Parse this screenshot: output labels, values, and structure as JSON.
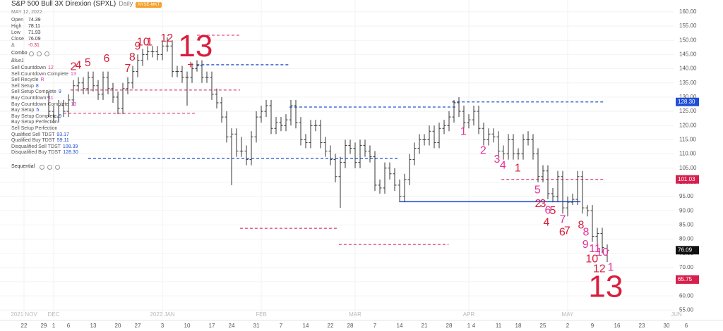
{
  "chart_data": {
    "type": "ohlc",
    "title": "S&P 500 Bull 3X Direxion (SPXL)",
    "interval": "Daily",
    "exchange": "NYSE-MKT",
    "date": "MAY 12, 2022",
    "ohlc_labels": [
      "Open",
      "High",
      "Low",
      "Close"
    ],
    "change_label": "Δ",
    "change": -0.31,
    "indicator": "Combo",
    "indicator_style": "Blue1",
    "indicator_rows": [
      {
        "label": "Sell Countdown",
        "value": "12",
        "color": "#e0476f"
      },
      {
        "label": "Sell Countdown Complete",
        "value": "13",
        "color": "#d43bbd"
      },
      {
        "label": "Sell Recycle",
        "value": "R",
        "color": "#d43bbd"
      },
      {
        "label": "Sell Setup",
        "value": "8",
        "color": "#1f4fd6"
      },
      {
        "label": "Sell Setup Complete",
        "value": "9",
        "color": "#1f4fd6"
      },
      {
        "label": "Buy Countdown",
        "value": "11",
        "color": "#d43bbd"
      },
      {
        "label": "Buy Countdown Complete",
        "value": "13",
        "color": "#d43bbd"
      },
      {
        "label": "Buy Setup",
        "value": "5",
        "color": "#1f4fd6"
      },
      {
        "label": "Buy Setup Complete",
        "value": "9",
        "color": "#1f4fd6"
      },
      {
        "label": "Buy Setup Perfection"
      },
      {
        "label": "Sell Setup Perfection"
      },
      {
        "label": "Qualified Sell TDST",
        "value": "93.17",
        "color": "#1f4fd6"
      },
      {
        "label": "Qualified Buy TDST",
        "value": "59.11",
        "color": "#1f4fd6"
      },
      {
        "label": "Disqualified Sell TDST",
        "value": "108.39",
        "color": "#1f4fd6"
      },
      {
        "label": "Disqualified Buy TDST",
        "value": "128.30",
        "color": "#1f4fd6"
      }
    ],
    "indicator2": "Sequential",
    "categories": [
      "22",
      null,
      null,
      null,
      "29",
      null,
      "1",
      null,
      null,
      "6",
      null,
      null,
      null,
      null,
      "13",
      null,
      null,
      null,
      null,
      "20",
      null,
      null,
      null,
      "27",
      null,
      null,
      null,
      null,
      "3",
      null,
      null,
      null,
      null,
      "10",
      null,
      null,
      null,
      null,
      "17",
      null,
      null,
      null,
      "24",
      null,
      null,
      null,
      null,
      "31",
      null,
      null,
      null,
      null,
      "7",
      null,
      null,
      null,
      null,
      "14",
      null,
      null,
      null,
      null,
      "22",
      null,
      null,
      null,
      "28",
      null,
      null,
      null,
      null,
      "7",
      null,
      null,
      null,
      null,
      "14",
      null,
      null,
      null,
      null,
      "21",
      null,
      null,
      null,
      null,
      "28",
      null,
      null,
      null,
      "1",
      "4",
      null,
      null,
      null,
      null,
      "11",
      null,
      null,
      null,
      "18",
      null,
      null,
      null,
      null,
      "25",
      null,
      null,
      null,
      null,
      "2",
      null,
      null,
      null,
      null,
      "9",
      null,
      null,
      null,
      null,
      "16",
      null,
      null,
      null,
      null,
      "23",
      null,
      null,
      null,
      null,
      "30",
      null,
      null,
      null,
      "6"
    ],
    "open": [
      null,
      null,
      null,
      null,
      null,
      130,
      125,
      123,
      127,
      125,
      129,
      134,
      135,
      133,
      137,
      134,
      131,
      137,
      133,
      130,
      126,
      133,
      135,
      139,
      143,
      145,
      146,
      146,
      145,
      148,
      148,
      139,
      139,
      137,
      137,
      140,
      141,
      137,
      137,
      131,
      128,
      123,
      116,
      117,
      111,
      111,
      108,
      116,
      123,
      125,
      127,
      119,
      121,
      120,
      122,
      127,
      121,
      115,
      114,
      120,
      120,
      114,
      111,
      108,
      102,
      107,
      113,
      112,
      107,
      113,
      111,
      109,
      99,
      98,
      105,
      103,
      99,
      95,
      101,
      108,
      112,
      115,
      115,
      118,
      114,
      119,
      120,
      123,
      128,
      125,
      121,
      122,
      125,
      119,
      115,
      117,
      116,
      111,
      110,
      115,
      110,
      110,
      115,
      115,
      110,
      102,
      104,
      96,
      95,
      102,
      91,
      93,
      94,
      102,
      91,
      90,
      81,
      82,
      74.39,
      null,
      null,
      null,
      null,
      null,
      null,
      null,
      null,
      null,
      null,
      null,
      null,
      null,
      null,
      null,
      null
    ],
    "high": [
      null,
      null,
      null,
      null,
      null,
      132,
      127,
      129,
      129,
      131,
      136,
      137,
      137,
      139,
      139,
      136,
      139,
      139,
      135,
      132,
      135,
      137,
      141,
      145,
      147,
      148,
      148,
      148,
      150,
      151,
      150,
      141,
      141,
      139,
      142,
      143,
      143,
      139,
      139,
      133,
      130,
      125,
      119,
      119,
      116,
      113,
      118,
      125,
      127,
      129,
      129,
      123,
      123,
      124,
      129,
      129,
      123,
      117,
      122,
      122,
      122,
      116,
      113,
      110,
      109,
      115,
      115,
      114,
      115,
      115,
      113,
      111,
      101,
      107,
      107,
      105,
      101,
      103,
      110,
      114,
      117,
      117,
      120,
      120,
      121,
      122,
      125,
      129,
      130,
      127,
      124,
      127,
      127,
      121,
      119,
      119,
      118,
      113,
      117,
      117,
      112,
      117,
      118,
      117,
      112,
      106,
      106,
      98,
      104,
      104,
      95,
      96,
      104,
      104,
      92,
      92,
      84,
      84,
      78.11,
      null,
      null,
      null,
      null,
      null,
      null,
      null,
      null,
      null,
      null,
      null,
      null,
      null,
      null,
      null,
      null
    ],
    "low": [
      null,
      null,
      null,
      null,
      null,
      123,
      121,
      121,
      123,
      123,
      127,
      132,
      131,
      131,
      132,
      129,
      129,
      131,
      128,
      124,
      124,
      131,
      133,
      137,
      141,
      143,
      144,
      143,
      143,
      146,
      137,
      137,
      135,
      127,
      135,
      139,
      135,
      135,
      129,
      126,
      121,
      114,
      99,
      109,
      109,
      106,
      106,
      114,
      121,
      123,
      117,
      117,
      118,
      118,
      120,
      119,
      113,
      112,
      112,
      118,
      112,
      109,
      106,
      100,
      91,
      105,
      110,
      105,
      105,
      109,
      107,
      97,
      96,
      96,
      101,
      97,
      93,
      93,
      99,
      106,
      110,
      113,
      113,
      112,
      112,
      117,
      118,
      121,
      123,
      119,
      119,
      120,
      117,
      113,
      113,
      114,
      109,
      108,
      108,
      108,
      108,
      108,
      113,
      108,
      100,
      100,
      94,
      93,
      93,
      89,
      88,
      92,
      92,
      89,
      88,
      79,
      78,
      75,
      71.93,
      null,
      null,
      null,
      null,
      null,
      null,
      null,
      null,
      null,
      null,
      null,
      null,
      null,
      null,
      null,
      null
    ],
    "close": [
      null,
      null,
      null,
      null,
      null,
      125,
      123,
      127,
      125,
      129,
      134,
      135,
      133,
      137,
      134,
      131,
      137,
      133,
      130,
      126,
      133,
      135,
      139,
      143,
      145,
      146,
      146,
      145,
      148,
      148,
      139,
      139,
      137,
      137,
      140,
      141,
      137,
      137,
      131,
      128,
      123,
      116,
      117,
      111,
      111,
      108,
      116,
      123,
      125,
      127,
      119,
      121,
      120,
      122,
      127,
      121,
      115,
      114,
      120,
      120,
      114,
      111,
      108,
      102,
      107,
      113,
      112,
      107,
      113,
      111,
      109,
      99,
      98,
      105,
      103,
      99,
      95,
      101,
      108,
      112,
      115,
      115,
      118,
      114,
      119,
      120,
      123,
      128,
      125,
      121,
      122,
      125,
      119,
      115,
      117,
      116,
      111,
      110,
      115,
      110,
      110,
      115,
      115,
      110,
      102,
      104,
      96,
      95,
      102,
      91,
      93,
      94,
      102,
      91,
      90,
      81,
      82,
      77,
      76.09,
      null,
      null,
      null,
      null,
      null,
      null,
      null,
      null,
      null,
      null,
      null,
      null,
      null,
      null,
      null,
      null
    ],
    "bar_color": "#333333",
    "month_labels": [
      {
        "value": 0,
        "label": "2021 NOV"
      },
      {
        "value": 6,
        "label": "DEC"
      },
      {
        "value": 28,
        "label": "2022 JAN"
      },
      {
        "value": 48,
        "label": "FEB"
      },
      {
        "value": 67,
        "label": "MAR"
      },
      {
        "value": 90,
        "label": "APR"
      },
      {
        "value": 110,
        "label": "MAY"
      },
      {
        "value": 132,
        "label": "JUN"
      }
    ],
    "ylim": [
      52.1,
      164.2
    ],
    "yticks": [
      {
        "value": 55,
        "label": "55.00"
      },
      {
        "value": 60,
        "label": "60.00"
      },
      {
        "value": 65,
        "label": "65.00"
      },
      {
        "value": 70,
        "label": "70.00"
      },
      {
        "value": 75,
        "label": "75.00"
      },
      {
        "value": 80,
        "label": "80.00"
      },
      {
        "value": 85,
        "label": "85.00"
      },
      {
        "value": 90,
        "label": "90.00"
      },
      {
        "value": 95,
        "label": "95.00"
      },
      {
        "value": 100,
        "label": "100.00"
      },
      {
        "value": 105,
        "label": "105.00"
      },
      {
        "value": 110,
        "label": "110.00"
      },
      {
        "value": 115,
        "label": "115.00"
      },
      {
        "value": 120,
        "label": "120.00"
      },
      {
        "value": 125,
        "label": "125.00"
      },
      {
        "value": 130,
        "label": "130.00"
      },
      {
        "value": 135,
        "label": "135.00"
      },
      {
        "value": 140,
        "label": "140.00"
      },
      {
        "value": 145,
        "label": "145.00"
      },
      {
        "value": 150,
        "label": "150.00"
      },
      {
        "value": 155,
        "label": "155.00"
      },
      {
        "value": 160,
        "label": "160.00"
      }
    ],
    "grid": true,
    "levels": [
      {
        "value": 108.39,
        "x": [
          13,
          76
        ],
        "style": "dashed",
        "color": "#1f4fd6"
      },
      {
        "value": 141.4,
        "x": [
          34.9,
          53.7
        ],
        "style": "dashed",
        "color": "#1f4fd6"
      },
      {
        "value": 126.5,
        "x": [
          53.7,
          87.3
        ],
        "style": "dashed",
        "color": "#1f4fd6"
      },
      {
        "value": 128.3,
        "x": [
          86.6,
          117.4
        ],
        "style": "dashed",
        "color": "#1f4fd6"
      },
      {
        "value": 93.17,
        "x": [
          76,
          112.6
        ],
        "style": "solid",
        "color": "#1f4fd6"
      },
      {
        "value": 151.8,
        "x": [
          35,
          43.7
        ],
        "style": "dashed",
        "color": "#e0508f"
      },
      {
        "value": 132.5,
        "x": [
          9.4,
          43.7
        ],
        "style": "dashed",
        "color": "#e0508f"
      },
      {
        "value": 124.3,
        "x": [
          8,
          35
        ],
        "style": "dashed",
        "color": "#e0508f"
      },
      {
        "value": 101.03,
        "x": [
          96.6,
          117.4
        ],
        "style": "dashed",
        "color": "#e0508f"
      },
      {
        "value": 83.8,
        "x": [
          43.7,
          63.4
        ],
        "style": "dashed",
        "color": "#e0508f"
      },
      {
        "value": 78.1,
        "x": [
          63.7,
          85.9
        ],
        "style": "dashed",
        "color": "#e0508f"
      }
    ],
    "price_labels": [
      {
        "value": 128.3,
        "label": "128.30",
        "color": "#1f4fd6"
      },
      {
        "value": 101.03,
        "color": "#d6204d"
      },
      {
        "value": 76.09,
        "color": "#111111"
      },
      {
        "value": 65.75,
        "color": "#d6204d"
      }
    ],
    "annotations": [
      {
        "text": "2",
        "x": 10,
        "y": 140.6,
        "color": "#d81e3c"
      },
      {
        "text": "4",
        "x": 11,
        "y": 141.1,
        "color": "#d81e3c"
      },
      {
        "text": "5",
        "x": 12.9,
        "y": 141.9,
        "color": "#d81e3c"
      },
      {
        "text": "6",
        "x": 16.7,
        "y": 143.4,
        "color": "#d81e3c"
      },
      {
        "text": "7",
        "x": 21,
        "y": 139.9,
        "color": "#d81e3c"
      },
      {
        "text": "8",
        "x": 21.9,
        "y": 143.9,
        "color": "#d81e3c"
      },
      {
        "text": "9",
        "x": 23,
        "y": 147.8,
        "color": "#d81e3c"
      },
      {
        "text": "10",
        "x": 24.1,
        "y": 149.3,
        "color": "#d81e3c"
      },
      {
        "text": "1",
        "x": 25.4,
        "y": 149.3,
        "color": "#d81e3c"
      },
      {
        "text": "12",
        "x": 28.9,
        "y": 150.6,
        "color": "#d81e3c"
      },
      {
        "text": "+",
        "x": 33.7,
        "y": 141.2,
        "color": "#d81e3c"
      },
      {
        "text": "13",
        "x": 34.7,
        "y": 147.3,
        "color": "#d81e3c",
        "big": true
      },
      {
        "text": "1",
        "x": 88.9,
        "y": 117.8,
        "color": "#e3309a"
      },
      {
        "text": "2",
        "x": 92.9,
        "y": 111.1,
        "color": "#e3309a"
      },
      {
        "text": "3",
        "x": 95.7,
        "y": 107.9,
        "color": "#e3309a"
      },
      {
        "text": "4",
        "x": 96.9,
        "y": 105.9,
        "color": "#e3309a"
      },
      {
        "text": "1",
        "x": 99.9,
        "y": 104.9,
        "color": "#d81e3c"
      },
      {
        "text": "5",
        "x": 103.9,
        "y": 97.2,
        "color": "#e3309a"
      },
      {
        "text": "2",
        "x": 104,
        "y": 92.3,
        "color": "#d81e3c"
      },
      {
        "text": "3",
        "x": 105,
        "y": 92.3,
        "color": "#d81e3c"
      },
      {
        "text": "6",
        "x": 106,
        "y": 90,
        "color": "#e3309a"
      },
      {
        "text": "5",
        "x": 107,
        "y": 89.8,
        "color": "#d81e3c"
      },
      {
        "text": "4",
        "x": 105.7,
        "y": 85.8,
        "color": "#d81e3c"
      },
      {
        "text": "7",
        "x": 109,
        "y": 86.8,
        "color": "#e3309a"
      },
      {
        "text": "6",
        "x": 108.9,
        "y": 82.3,
        "color": "#d81e3c"
      },
      {
        "text": "7",
        "x": 109.9,
        "y": 82.8,
        "color": "#d81e3c"
      },
      {
        "text": "8",
        "x": 112.7,
        "y": 84.8,
        "color": "#d81e3c"
      },
      {
        "text": "8",
        "x": 113.7,
        "y": 82.3,
        "color": "#e3309a"
      },
      {
        "text": "9",
        "x": 113.6,
        "y": 77.9,
        "color": "#e3309a"
      },
      {
        "text": "11",
        "x": 115.5,
        "y": 76.5,
        "color": "#e3309a"
      },
      {
        "text": "10",
        "x": 117,
        "y": 75.2,
        "color": "#e3309a"
      },
      {
        "text": "10",
        "x": 114.9,
        "y": 72.9,
        "color": "#d81e3c"
      },
      {
        "text": "12",
        "x": 116.4,
        "y": 69.4,
        "color": "#d81e3c"
      },
      {
        "text": "1",
        "x": 118.7,
        "y": 69.9,
        "color": "#e3309a"
      },
      {
        "text": "13",
        "x": 117.7,
        "y": 62.5,
        "color": "#d81e3c",
        "big": true
      }
    ]
  }
}
